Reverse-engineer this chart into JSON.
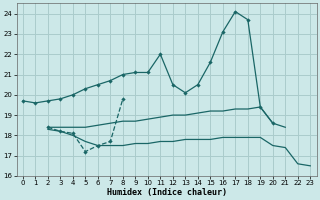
{
  "background_color": "#cce8e8",
  "grid_color": "#aacccc",
  "line_color": "#1a6666",
  "xlabel": "Humidex (Indice chaleur)",
  "ylim": [
    16,
    24.5
  ],
  "xlim": [
    -0.5,
    23.5
  ],
  "yticks": [
    16,
    17,
    18,
    19,
    20,
    21,
    22,
    23,
    24
  ],
  "xticks": [
    0,
    1,
    2,
    3,
    4,
    5,
    6,
    7,
    8,
    9,
    10,
    11,
    12,
    13,
    14,
    15,
    16,
    17,
    18,
    19,
    20,
    21,
    22,
    23
  ],
  "series": [
    {
      "x": [
        0,
        1,
        2,
        3,
        4,
        5,
        6,
        7,
        8,
        9,
        10,
        11,
        12,
        13,
        14,
        15,
        16,
        17,
        18,
        19,
        20
      ],
      "y": [
        19.7,
        19.6,
        19.7,
        19.8,
        20.0,
        20.3,
        20.5,
        20.7,
        21.0,
        21.1,
        21.1,
        22.0,
        20.5,
        20.1,
        20.5,
        21.6,
        23.1,
        24.1,
        23.7,
        19.4,
        18.6
      ],
      "has_markers": true,
      "linestyle": "-"
    },
    {
      "x": [
        2,
        3,
        4,
        5,
        6,
        7,
        8
      ],
      "y": [
        18.4,
        18.2,
        18.1,
        17.2,
        17.5,
        17.7,
        19.8
      ],
      "has_markers": true,
      "linestyle": "--"
    },
    {
      "x": [
        2,
        3,
        4,
        5,
        6,
        7,
        8,
        9,
        10,
        11,
        12,
        13,
        14,
        15,
        16,
        17,
        18,
        19,
        20,
        21
      ],
      "y": [
        18.4,
        18.4,
        18.4,
        18.4,
        18.5,
        18.6,
        18.7,
        18.7,
        18.8,
        18.9,
        19.0,
        19.0,
        19.1,
        19.2,
        19.2,
        19.3,
        19.3,
        19.4,
        18.6,
        18.4
      ],
      "has_markers": false,
      "linestyle": "-"
    },
    {
      "x": [
        2,
        3,
        4,
        5,
        6,
        7,
        8,
        9,
        10,
        11,
        12,
        13,
        14,
        15,
        16,
        17,
        18,
        19,
        20,
        21,
        22,
        23
      ],
      "y": [
        18.3,
        18.2,
        18.0,
        17.7,
        17.5,
        17.5,
        17.5,
        17.6,
        17.6,
        17.7,
        17.7,
        17.8,
        17.8,
        17.8,
        17.9,
        17.9,
        17.9,
        17.9,
        17.5,
        17.4,
        16.6,
        16.5
      ],
      "has_markers": false,
      "linestyle": "-"
    }
  ]
}
